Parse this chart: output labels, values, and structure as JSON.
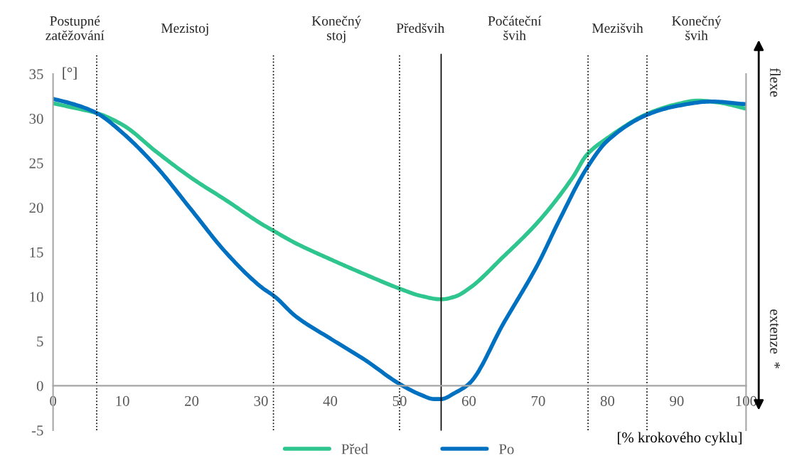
{
  "chart_data": {
    "type": "line",
    "x": [
      0,
      3,
      6.3,
      10,
      15,
      20,
      25,
      30,
      32,
      35,
      40,
      45,
      50,
      53,
      56,
      58,
      60,
      65,
      70,
      75,
      77,
      80,
      86,
      90,
      93,
      96,
      100
    ],
    "series": [
      {
        "name": "Před",
        "color": "#2ec58f",
        "values": [
          31.7,
          31.2,
          30.6,
          29.3,
          26.2,
          23.3,
          20.8,
          18.2,
          17.3,
          16.0,
          14.2,
          12.5,
          10.9,
          10.1,
          9.7,
          10.0,
          10.9,
          14.5,
          18.4,
          23.4,
          25.9,
          27.8,
          30.6,
          31.6,
          32.0,
          31.8,
          31.1
        ]
      },
      {
        "name": "Po",
        "color": "#0070c0",
        "x": [
          0,
          3,
          6.3,
          10,
          15,
          20,
          25,
          30,
          32,
          35,
          40,
          45,
          50,
          53,
          55,
          56,
          58,
          60,
          65,
          70,
          73,
          77,
          80,
          86,
          90,
          95,
          100
        ],
        "values": [
          32.2,
          31.6,
          30.6,
          28.4,
          24.5,
          19.7,
          14.9,
          11.1,
          10.0,
          7.8,
          5.3,
          2.9,
          0.2,
          -1.0,
          -1.5,
          -1.5,
          -0.8,
          0.2,
          7.0,
          13.7,
          18.5,
          24.4,
          27.5,
          30.5,
          31.4,
          31.9,
          31.6
        ]
      }
    ],
    "xlim": [
      0,
      100
    ],
    "xticks": [
      0,
      10,
      20,
      30,
      40,
      50,
      60,
      70,
      80,
      90,
      100
    ],
    "ylim": [
      -5,
      35
    ],
    "yticks": [
      -5,
      0,
      5,
      10,
      15,
      20,
      25,
      30,
      35
    ],
    "xlabel": "[% krokového cyklu]",
    "ylabel": "[°]",
    "grid": false,
    "legend": "bottom",
    "marker": "none",
    "line_style": "solid",
    "ref_lines": [
      {
        "axis": "x",
        "value": 6.3,
        "line_style": "dotted"
      },
      {
        "axis": "x",
        "value": 31.8,
        "line_style": "dotted"
      },
      {
        "axis": "x",
        "value": 50,
        "line_style": "dotted"
      },
      {
        "axis": "x",
        "value": 56,
        "line_style": "solid"
      },
      {
        "axis": "x",
        "value": 77.2,
        "line_style": "dotted"
      },
      {
        "axis": "x",
        "value": 85.7,
        "line_style": "dotted"
      }
    ],
    "annotations": [
      "Postupné\nzatěžování",
      "Mezistoj",
      "Konečný\nstoj",
      "Předšvih",
      "Počáteční\nšvih",
      "Mezišvih",
      "Konečný\nšvih",
      "flexe",
      "extenze  *"
    ]
  }
}
